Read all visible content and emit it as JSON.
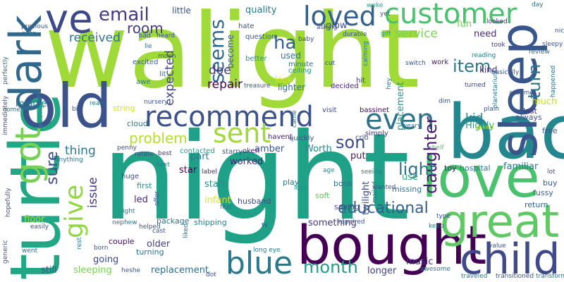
{
  "words": [
    {
      "text": "walight",
      "color": "#a0da39"
    },
    {
      "text": "night",
      "color": "#1fa187"
    },
    {
      "text": "turtle",
      "color": "#22a785"
    },
    {
      "text": "back",
      "color": "#24878e"
    },
    {
      "text": "bought",
      "color": "#440154"
    },
    {
      "text": "sleep",
      "color": "#39568c"
    },
    {
      "text": "old",
      "color": "#3b528b"
    },
    {
      "text": "love",
      "color": "#4ac16d"
    },
    {
      "text": "great",
      "color": "#5ec962"
    },
    {
      "text": "child",
      "color": "#3e4a89"
    },
    {
      "text": "dark",
      "color": "#31688e"
    },
    {
      "text": "ve",
      "color": "#3e4989"
    },
    {
      "text": "got",
      "color": "#75d054"
    },
    {
      "text": "recommend",
      "color": "#3b528b"
    },
    {
      "text": "customer",
      "color": "#4ac16d"
    },
    {
      "text": "sent",
      "color": "#a0da39"
    },
    {
      "text": "blue",
      "color": "#2a788e"
    },
    {
      "text": "loved",
      "color": "#34608d"
    },
    {
      "text": "even",
      "color": "#2c728e"
    },
    {
      "text": "give",
      "color": "#90d743"
    },
    {
      "text": "daughter",
      "color": "#481a6c"
    },
    {
      "text": "month",
      "color": "#1f9e89"
    },
    {
      "text": "light",
      "color": "#2c728e"
    },
    {
      "text": "email",
      "color": "#443983"
    },
    {
      "text": "seems",
      "color": "#31688e"
    },
    {
      "text": "problem",
      "color": "#b5de2b"
    },
    {
      "text": "educational",
      "color": "#355f8d"
    },
    {
      "text": "turn",
      "color": "#2a778e"
    },
    {
      "text": "son",
      "color": "#3e4a89"
    },
    {
      "text": "item",
      "color": "#2a788e"
    },
    {
      "text": "ha",
      "color": "#355f8d"
    },
    {
      "text": "room",
      "color": "#433d84"
    },
    {
      "text": "sure",
      "color": "#3e4a89"
    },
    {
      "text": "received",
      "color": "#2c728e"
    },
    {
      "text": "service",
      "color": "#7ad151"
    },
    {
      "text": "kid",
      "color": "#26828e"
    },
    {
      "text": "issue",
      "color": "#443983"
    },
    {
      "text": "thing",
      "color": "#2a788e"
    },
    {
      "text": "repair",
      "color": "#440154"
    },
    {
      "text": "doe",
      "color": "#453781"
    },
    {
      "text": "expected",
      "color": "#414487"
    },
    {
      "text": "quality",
      "color": "#2a788e"
    },
    {
      "text": "glow",
      "color": "#3b528b"
    },
    {
      "text": "fun",
      "color": "#6ccd5a"
    },
    {
      "text": "need",
      "color": "#472d7b"
    },
    {
      "text": "Highly",
      "color": "#1f9e89"
    },
    {
      "text": "placement",
      "color": "#1f9a8a"
    },
    {
      "text": "twilight",
      "color": "#3e4a89"
    },
    {
      "text": "part",
      "color": "#2a788e"
    },
    {
      "text": "star",
      "color": "#440154"
    },
    {
      "text": "worked",
      "color": "#482878"
    },
    {
      "text": "start",
      "color": "#21918c"
    },
    {
      "text": "infant",
      "color": "#dde318"
    },
    {
      "text": "led",
      "color": "#482878"
    },
    {
      "text": "amber",
      "color": "#39568c"
    },
    {
      "text": "Worth",
      "color": "#23888e"
    },
    {
      "text": "put",
      "color": "#481668"
    },
    {
      "text": "familiar",
      "color": "#2c728e"
    },
    {
      "text": "use",
      "color": "#29af7f"
    },
    {
      "text": "music",
      "color": "#46327e"
    },
    {
      "text": "going",
      "color": "#3e4989"
    },
    {
      "text": "older",
      "color": "#433e85"
    },
    {
      "text": "replacement",
      "color": "#2d708e"
    },
    {
      "text": "sleeping",
      "color": "#7ad151"
    },
    {
      "text": "still",
      "color": "#3a548c"
    },
    {
      "text": "something",
      "color": "#453882"
    },
    {
      "text": "longer",
      "color": "#424086"
    },
    {
      "text": "floor",
      "color": "#a5db36"
    },
    {
      "text": "middle",
      "color": "#2a788e"
    },
    {
      "text": "much",
      "color": "#c2df23"
    },
    {
      "text": "little",
      "color": "#3b528b"
    },
    {
      "text": "used",
      "color": "#2c718e"
    },
    {
      "text": "look",
      "color": "#dce319"
    },
    {
      "text": "become",
      "color": "#3a538b"
    },
    {
      "text": "lighter",
      "color": "#2e6d8e"
    },
    {
      "text": "kind",
      "color": "#472c7a"
    },
    {
      "text": "free",
      "color": "#38598c"
    },
    {
      "text": "buy",
      "color": "#355e8d"
    },
    {
      "text": "fussy",
      "color": "#32658e"
    },
    {
      "text": "always",
      "color": "#3b528b"
    },
    {
      "text": "last",
      "color": "#46327e"
    },
    {
      "text": "return",
      "color": "#33638d"
    },
    {
      "text": "soft",
      "color": "#5ec962"
    },
    {
      "text": "book",
      "color": "#2d708e"
    },
    {
      "text": "missing",
      "color": "#2b758e"
    },
    {
      "text": "saying",
      "color": "#3d4d8a"
    },
    {
      "text": "shipping",
      "color": "#27808e"
    },
    {
      "text": "cloud",
      "color": "#287c8e"
    },
    {
      "text": "string",
      "color": "#d2e21b"
    },
    {
      "text": "huge",
      "color": "#3e4c8a"
    },
    {
      "text": "first",
      "color": "#1f948c"
    },
    {
      "text": "package",
      "color": "#2c738e"
    },
    {
      "text": "couple",
      "color": "#460b5e"
    },
    {
      "text": "turning",
      "color": "#2d708e"
    },
    {
      "text": "husband",
      "color": "#3e4989"
    },
    {
      "text": "play",
      "color": "#2a788e"
    },
    {
      "text": "hospital",
      "color": "#2a778e"
    },
    {
      "text": "toy",
      "color": "#481b6d"
    },
    {
      "text": "contacted",
      "color": "#1f9a8a"
    },
    {
      "text": "starry",
      "color": "#3b518b"
    },
    {
      "text": "oken",
      "color": "#481b6d"
    },
    {
      "text": "havent",
      "color": "#48196b"
    },
    {
      "text": "quickly",
      "color": "#3a548c"
    },
    {
      "text": "crib",
      "color": "#39568c"
    },
    {
      "text": "simply",
      "color": "#453882"
    },
    {
      "text": "visit",
      "color": "#3e4989"
    },
    {
      "text": "bassinet",
      "color": "#46085c"
    },
    {
      "text": "decided",
      "color": "#482475"
    },
    {
      "text": "hit",
      "color": "#453581"
    },
    {
      "text": "work",
      "color": "#48186a"
    },
    {
      "text": "excited",
      "color": "#34608d"
    },
    {
      "text": "lit",
      "color": "#2d708e"
    },
    {
      "text": "awe",
      "color": "#287d8e"
    },
    {
      "text": "minute",
      "color": "#2c728e"
    },
    {
      "text": "ceiling",
      "color": "#21918c"
    },
    {
      "text": "better",
      "color": "#21918c"
    },
    {
      "text": "question",
      "color": "#355e8d"
    },
    {
      "text": "hate",
      "color": "#3d4d8a"
    },
    {
      "text": "woke",
      "color": "#1f9e89"
    },
    {
      "text": "asking",
      "color": "#3e4c8a"
    },
    {
      "text": "baby",
      "color": "#3f4889"
    },
    {
      "text": "durable",
      "color": "#3b528b"
    },
    {
      "text": "gift",
      "color": "#1fa088"
    },
    {
      "text": "looked",
      "color": "#472a7a"
    },
    {
      "text": "review",
      "color": "#306a8e"
    },
    {
      "text": "took",
      "color": "#443983"
    },
    {
      "text": "reading",
      "color": "#2a788e"
    },
    {
      "text": "basically",
      "color": "#3b528b"
    },
    {
      "text": "turned",
      "color": "#424086"
    },
    {
      "text": "plain",
      "color": "#39568c"
    },
    {
      "text": "asked",
      "color": "#b5de2b"
    },
    {
      "text": "weary",
      "color": "#2d708e"
    },
    {
      "text": "shelf",
      "color": "#50c46a"
    },
    {
      "text": "age",
      "color": "#228d8d"
    },
    {
      "text": "seeing",
      "color": "#287c8e"
    },
    {
      "text": "wanted",
      "color": "#3b518b"
    },
    {
      "text": "lone",
      "color": "#228c8d"
    },
    {
      "text": "penny",
      "color": "#3e4a89"
    },
    {
      "text": "rotate",
      "color": "#3c4f8a"
    },
    {
      "text": "best",
      "color": "#46337f"
    },
    {
      "text": "next",
      "color": "#2a778e"
    },
    {
      "text": "label",
      "color": "#482677"
    },
    {
      "text": "nursery",
      "color": "#3b528b"
    },
    {
      "text": "really",
      "color": "#2e6e8e"
    },
    {
      "text": "immediately",
      "color": "#3d4e8a"
    },
    {
      "text": "perfectly",
      "color": "#2f6c8e"
    },
    {
      "text": "lie",
      "color": "#31688e"
    },
    {
      "text": "moon",
      "color": "#3b528b"
    },
    {
      "text": "heard",
      "color": "#3b528b"
    },
    {
      "text": "bad",
      "color": "#3a548c"
    },
    {
      "text": "auto",
      "color": "#2c718e"
    },
    {
      "text": "precious",
      "color": "#3b528b"
    },
    {
      "text": "feeding",
      "color": "#21918c"
    },
    {
      "text": "come",
      "color": "#2c728e"
    },
    {
      "text": "big",
      "color": "#3b528b"
    },
    {
      "text": "anything",
      "color": "#2a788e"
    },
    {
      "text": "hopefully",
      "color": "#3d4e8a"
    },
    {
      "text": "easily",
      "color": "#3b528b"
    },
    {
      "text": "generic",
      "color": "#3b528b"
    },
    {
      "text": "went",
      "color": "#2d708e"
    },
    {
      "text": "rest",
      "color": "#2a788e"
    },
    {
      "text": "born",
      "color": "#3b528b"
    },
    {
      "text": "helped",
      "color": "#3b528b"
    },
    {
      "text": "cast",
      "color": "#3b528b"
    },
    {
      "text": "liked",
      "color": "#2c728e"
    },
    {
      "text": "nephew",
      "color": "#2a788e"
    },
    {
      "text": "fear",
      "color": "#2d708e"
    },
    {
      "text": "ight",
      "color": "#2a788e"
    },
    {
      "text": "offer",
      "color": "#3b528b"
    },
    {
      "text": "long eye",
      "color": "#2a788e"
    },
    {
      "text": "tv",
      "color": "#3b528b"
    },
    {
      "text": "repaired",
      "color": "#3b528b"
    },
    {
      "text": "keep",
      "color": "#2d708e"
    },
    {
      "text": "awesome",
      "color": "#2a788e"
    },
    {
      "text": "heshe",
      "color": "#3b528b"
    },
    {
      "text": "dot",
      "color": "#3b528b"
    },
    {
      "text": "traveled",
      "color": "#2c728e"
    },
    {
      "text": "transitioned",
      "color": "#3b528b"
    },
    {
      "text": "transforms",
      "color": "#2d708e"
    },
    {
      "text": "value",
      "color": "#3b528b"
    },
    {
      "text": "type",
      "color": "#3b528b"
    },
    {
      "text": "mailed",
      "color": "#2a788e"
    },
    {
      "text": "lot",
      "color": "#3b528b"
    },
    {
      "text": "assume",
      "color": "#3b528b"
    },
    {
      "text": "happened",
      "color": "#2c728e"
    },
    {
      "text": "planetarium",
      "color": "#2a788e"
    },
    {
      "text": "sleepy",
      "color": "#3b528b"
    },
    {
      "text": "nice",
      "color": "#3b528b"
    },
    {
      "text": "day",
      "color": "#2d708e"
    },
    {
      "text": "yet",
      "color": "#3b528b"
    },
    {
      "text": "switch",
      "color": "#3b528b"
    },
    {
      "text": "calming",
      "color": "#2a788e"
    },
    {
      "text": "cut",
      "color": "#3b528b"
    },
    {
      "text": "treasure",
      "color": "#3b528b"
    },
    {
      "text": "hey",
      "color": "#2a788e"
    },
    {
      "text": "came",
      "color": "#2a788e"
    },
    {
      "text": "dim",
      "color": "#3b528b"
    }
  ]
}
